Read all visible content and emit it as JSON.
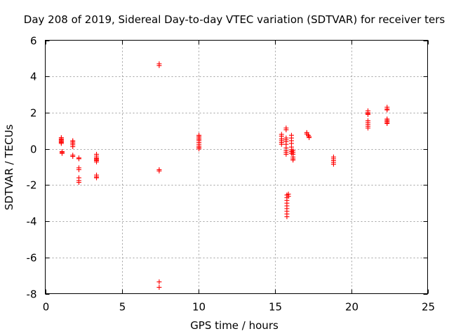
{
  "chart_data": {
    "type": "scatter",
    "title": "Day 208 of 2019, Sidereal Day-to-day VTEC variation (SDTVAR) for receiver ters",
    "xlabel": "GPS time / hours",
    "ylabel": "SDTVAR / TECUs",
    "xlim": [
      0,
      25
    ],
    "ylim": [
      -8,
      6
    ],
    "xticks": [
      0,
      5,
      10,
      15,
      20,
      25
    ],
    "yticks": [
      -8,
      -6,
      -4,
      -2,
      0,
      2,
      4,
      6
    ],
    "grid": true,
    "marker": "+",
    "marker_color": "#ff0000",
    "series": [
      {
        "name": "SDTVAR",
        "points": [
          [
            1.05,
            0.62
          ],
          [
            1.05,
            0.55
          ],
          [
            1.05,
            0.5
          ],
          [
            1.05,
            0.45
          ],
          [
            1.05,
            0.4
          ],
          [
            1.05,
            0.35
          ],
          [
            1.05,
            0.3
          ],
          [
            1.1,
            -0.15
          ],
          [
            1.1,
            -0.2
          ],
          [
            1.1,
            -0.25
          ],
          [
            1.8,
            0.45
          ],
          [
            1.8,
            0.38
          ],
          [
            1.8,
            0.3
          ],
          [
            1.8,
            0.22
          ],
          [
            1.8,
            0.12
          ],
          [
            1.8,
            -0.35
          ],
          [
            1.8,
            -0.42
          ],
          [
            2.2,
            -0.5
          ],
          [
            2.2,
            -0.55
          ],
          [
            2.2,
            -1.05
          ],
          [
            2.2,
            -1.15
          ],
          [
            2.2,
            -1.6
          ],
          [
            2.2,
            -1.75
          ],
          [
            2.2,
            -1.85
          ],
          [
            3.35,
            -0.3
          ],
          [
            3.35,
            -0.4
          ],
          [
            3.35,
            -0.5
          ],
          [
            3.35,
            -0.55
          ],
          [
            3.35,
            -0.6
          ],
          [
            3.35,
            -0.65
          ],
          [
            3.35,
            -0.72
          ],
          [
            3.35,
            -1.45
          ],
          [
            3.35,
            -1.55
          ],
          [
            3.35,
            -1.6
          ],
          [
            7.45,
            4.7
          ],
          [
            7.45,
            4.6
          ],
          [
            7.45,
            -1.15
          ],
          [
            7.45,
            -1.22
          ],
          [
            7.45,
            -7.35
          ],
          [
            7.45,
            -7.65
          ],
          [
            10.05,
            0.75
          ],
          [
            10.05,
            0.68
          ],
          [
            10.05,
            0.6
          ],
          [
            10.05,
            0.52
          ],
          [
            10.05,
            0.45
          ],
          [
            10.05,
            0.35
          ],
          [
            10.05,
            0.25
          ],
          [
            10.05,
            0.15
          ],
          [
            10.05,
            0.08
          ],
          [
            10.05,
            0.0
          ],
          [
            15.45,
            0.8
          ],
          [
            15.45,
            0.7
          ],
          [
            15.45,
            0.55
          ],
          [
            15.45,
            0.45
          ],
          [
            15.45,
            0.35
          ],
          [
            15.45,
            0.25
          ],
          [
            15.75,
            1.15
          ],
          [
            15.75,
            1.05
          ],
          [
            15.75,
            0.6
          ],
          [
            15.75,
            0.5
          ],
          [
            15.75,
            0.4
          ],
          [
            15.75,
            0.25
          ],
          [
            15.75,
            0.05
          ],
          [
            15.75,
            -0.1
          ],
          [
            15.75,
            -0.2
          ],
          [
            15.75,
            -0.3
          ],
          [
            15.8,
            -2.55
          ],
          [
            15.8,
            -2.7
          ],
          [
            15.8,
            -2.85
          ],
          [
            15.8,
            -3.0
          ],
          [
            15.8,
            -3.15
          ],
          [
            15.8,
            -3.3
          ],
          [
            15.8,
            -3.45
          ],
          [
            15.8,
            -3.6
          ],
          [
            15.8,
            -3.75
          ],
          [
            15.9,
            -2.5
          ],
          [
            15.9,
            -2.62
          ],
          [
            16.1,
            0.75
          ],
          [
            16.1,
            0.6
          ],
          [
            16.1,
            0.45
          ],
          [
            16.1,
            0.3
          ],
          [
            16.1,
            0.1
          ],
          [
            16.1,
            -0.05
          ],
          [
            16.1,
            -0.15
          ],
          [
            16.1,
            -0.25
          ],
          [
            16.2,
            -0.1
          ],
          [
            16.2,
            -0.2
          ],
          [
            16.2,
            -0.3
          ],
          [
            16.2,
            -0.45
          ],
          [
            16.2,
            -0.55
          ],
          [
            16.2,
            -0.62
          ],
          [
            17.1,
            0.9
          ],
          [
            17.1,
            0.82
          ],
          [
            17.2,
            0.75
          ],
          [
            17.25,
            0.68
          ],
          [
            17.25,
            0.62
          ],
          [
            18.85,
            -0.45
          ],
          [
            18.85,
            -0.55
          ],
          [
            18.85,
            -0.65
          ],
          [
            18.85,
            -0.75
          ],
          [
            18.85,
            -0.85
          ],
          [
            21.1,
            2.1
          ],
          [
            21.1,
            2.0
          ],
          [
            21.1,
            1.95
          ],
          [
            21.1,
            1.9
          ],
          [
            21.1,
            1.55
          ],
          [
            21.1,
            1.45
          ],
          [
            21.1,
            1.35
          ],
          [
            21.1,
            1.25
          ],
          [
            21.1,
            1.15
          ],
          [
            22.35,
            2.3
          ],
          [
            22.35,
            2.2
          ],
          [
            22.35,
            2.15
          ],
          [
            22.35,
            1.65
          ],
          [
            22.35,
            1.58
          ],
          [
            22.35,
            1.52
          ],
          [
            22.35,
            1.45
          ],
          [
            22.35,
            1.4
          ]
        ]
      }
    ]
  }
}
